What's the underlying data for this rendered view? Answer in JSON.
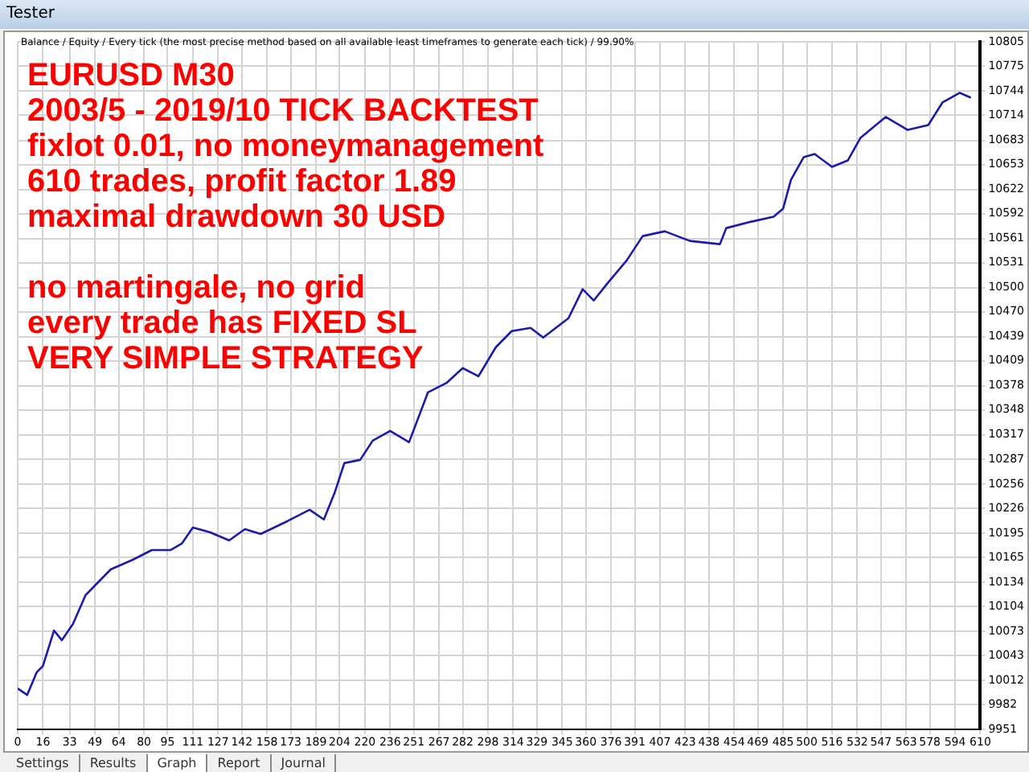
{
  "chart_data": {
    "type": "line",
    "title": "Tester",
    "subtitle": "Balance / Equity / Every tick (the most precise method based on all available least timeframes to generate each tick) / 99.90%",
    "annotations": [
      "EURUSD M30\n2003/5 - 2019/10 TICK BACKTEST\nfixlot 0.01, no moneymanagement\n610 trades, profit factor 1.89\nmaximal drawdown 30 USD\n\nno martingale, no grid\nevery trade has FIXED SL\nVERY SIMPLE STRATEGY",
      "Settings",
      "Results",
      "Graph",
      "Report",
      "Journal"
    ],
    "series": [
      {
        "color": "#1c1ca8",
        "x": [
          0,
          6,
          12,
          16,
          23,
          28,
          35,
          43,
          49,
          59,
          73,
          85,
          97,
          104,
          111,
          122,
          134,
          144,
          154,
          171,
          185,
          194,
          201,
          207,
          217,
          225,
          236,
          248,
          260,
          272,
          282,
          292,
          303,
          313,
          325,
          333,
          349,
          358,
          365,
          374,
          386,
          396,
          410,
          426,
          445,
          449,
          465,
          479,
          485,
          490,
          498,
          505,
          516,
          526,
          534,
          550,
          564,
          577,
          586,
          597,
          604
        ],
        "values": [
          10002,
          9994,
          10022,
          10030,
          10074,
          10062,
          10082,
          10118,
          10130,
          10150,
          10162,
          10174,
          10174,
          10182,
          10202,
          10196,
          10186,
          10200,
          10194,
          10210,
          10224,
          10212,
          10246,
          10282,
          10286,
          10310,
          10322,
          10308,
          10370,
          10382,
          10400,
          10390,
          10426,
          10446,
          10450,
          10438,
          10462,
          10498,
          10484,
          10506,
          10534,
          10564,
          10570,
          10558,
          10554,
          10574,
          10582,
          10588,
          10598,
          10634,
          10662,
          10666,
          10650,
          10658,
          10686,
          10712,
          10696,
          10702,
          10730,
          10742,
          10736
        ]
      }
    ],
    "xlim": [
      0,
      610
    ],
    "xticks": [
      0,
      16,
      33,
      49,
      64,
      80,
      95,
      111,
      127,
      142,
      158,
      173,
      189,
      204,
      220,
      236,
      251,
      267,
      282,
      298,
      314,
      329,
      345,
      360,
      376,
      391,
      407,
      423,
      438,
      454,
      469,
      485,
      500,
      516,
      532,
      547,
      563,
      578,
      594,
      610
    ],
    "ylim": [
      9951,
      10805
    ],
    "yticks": [
      9951,
      9982,
      10012,
      10043,
      10073,
      10104,
      10134,
      10165,
      10195,
      10226,
      10256,
      10287,
      10317,
      10348,
      10378,
      10409,
      10439,
      10470,
      10500,
      10531,
      10561,
      10592,
      10622,
      10653,
      10683,
      10714,
      10744,
      10775,
      10805
    ],
    "grid": true,
    "marker": "none",
    "line_style": "solid"
  }
}
